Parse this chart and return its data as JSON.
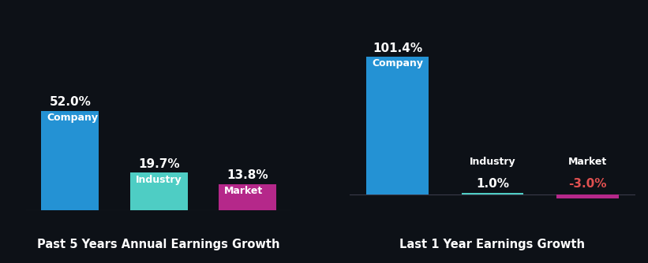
{
  "background_color": "#0d1117",
  "left_chart": {
    "title": "Past 5 Years Annual Earnings Growth",
    "categories": [
      "Company",
      "Industry",
      "Market"
    ],
    "values": [
      52.0,
      19.7,
      13.8
    ],
    "colors": [
      "#2492d4",
      "#4ecdc4",
      "#b5288a"
    ],
    "value_labels": [
      "52.0%",
      "19.7%",
      "13.8%"
    ],
    "value_colors": [
      "#ffffff",
      "#ffffff",
      "#ffffff"
    ]
  },
  "right_chart": {
    "title": "Last 1 Year Earnings Growth",
    "categories": [
      "Company",
      "Industry",
      "Market"
    ],
    "values": [
      101.4,
      1.0,
      -3.0
    ],
    "colors": [
      "#2492d4",
      "#4ecdc4",
      "#b5288a"
    ],
    "value_labels": [
      "101.4%",
      "1.0%",
      "-3.0%"
    ],
    "value_colors": [
      "#ffffff",
      "#ffffff",
      "#e05050"
    ]
  },
  "bar_width": 0.65,
  "title_color": "#ffffff",
  "label_color": "#ffffff",
  "title_fontsize": 10.5,
  "cat_label_fontsize": 9,
  "value_fontsize": 11
}
